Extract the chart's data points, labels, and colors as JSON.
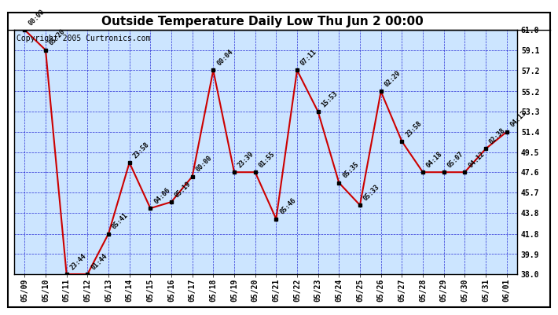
{
  "title": "Outside Temperature Daily Low Thu Jun 2 00:00",
  "copyright": "Copyright 2005 Curtronics.com",
  "x_labels": [
    "05/09",
    "05/10",
    "05/11",
    "05/12",
    "05/13",
    "05/14",
    "05/15",
    "05/16",
    "05/17",
    "05/18",
    "05/19",
    "05/20",
    "05/21",
    "05/22",
    "05/23",
    "05/24",
    "05/25",
    "05/26",
    "05/27",
    "05/28",
    "05/29",
    "05/30",
    "05/31",
    "06/01"
  ],
  "y_values": [
    61.0,
    59.1,
    38.0,
    38.0,
    41.8,
    48.5,
    44.2,
    44.8,
    47.2,
    57.2,
    47.6,
    47.6,
    43.2,
    57.2,
    53.3,
    46.6,
    44.5,
    55.2,
    50.5,
    47.6,
    47.6,
    47.6,
    49.8,
    51.4
  ],
  "point_labels": [
    "00:00",
    "05:20",
    "23:44",
    "01:44",
    "05:41",
    "23:58",
    "04:06",
    "05:19",
    "00:00",
    "00:04",
    "23:39",
    "01:55",
    "05:46",
    "07:11",
    "15:53",
    "05:35",
    "05:33",
    "02:29",
    "23:58",
    "04:18",
    "05:07",
    "04:12",
    "02:38",
    "04:13"
  ],
  "ylim_min": 38.0,
  "ylim_max": 61.0,
  "yticks": [
    38.0,
    39.9,
    41.8,
    43.8,
    45.7,
    47.6,
    49.5,
    51.4,
    53.3,
    55.2,
    57.2,
    59.1,
    61.0
  ],
  "line_color": "#cc0000",
  "marker_color": "#000000",
  "bg_color": "#cce5ff",
  "grid_color": "#0000cc",
  "title_color": "#000000",
  "title_fontsize": 11,
  "copyright_fontsize": 7,
  "tick_fontsize": 7,
  "label_fontsize": 6
}
